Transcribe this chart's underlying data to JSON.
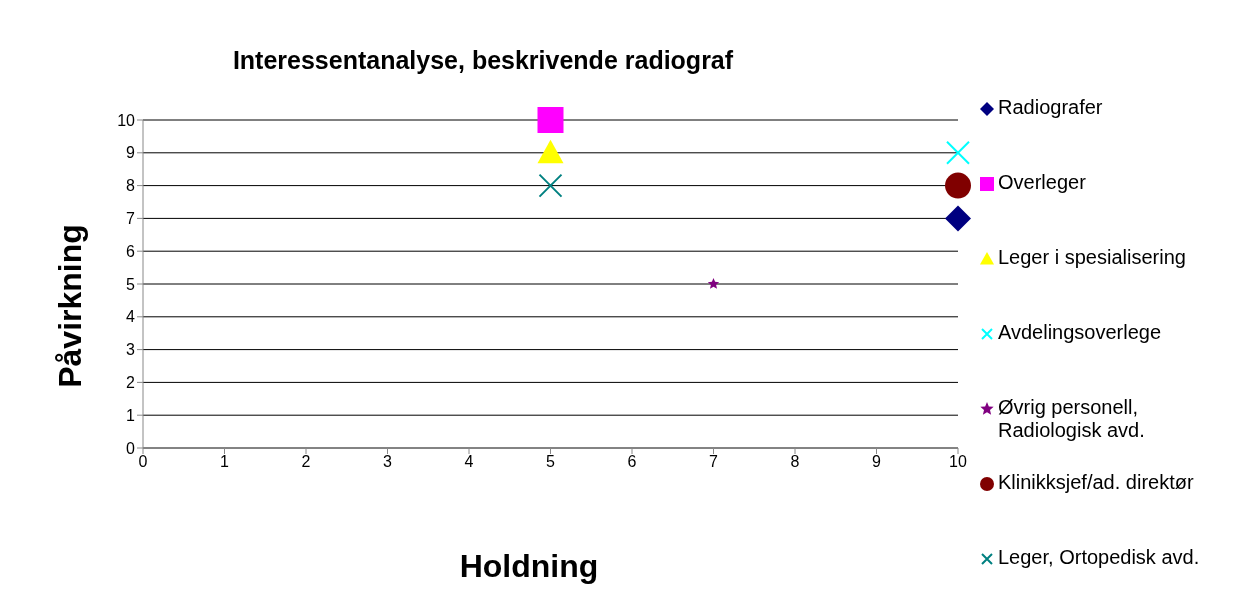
{
  "chart_data": {
    "type": "scatter",
    "title": "Interessentanalyse, beskrivende radiograf",
    "xlabel": "Holdning",
    "ylabel": "Påvirkning",
    "series": [
      {
        "name": "Radiografer",
        "color": "#000080",
        "x": [
          10
        ],
        "values": [
          7
        ],
        "marker": "diamond"
      },
      {
        "name": "Overleger",
        "color": "#ff00ff",
        "x": [
          5
        ],
        "values": [
          10
        ],
        "marker": "square"
      },
      {
        "name": "Leger i spesialisering",
        "color": "#ffff00",
        "x": [
          5
        ],
        "values": [
          9
        ],
        "marker": "triangle"
      },
      {
        "name": "Avdelingsoverlege",
        "color": "#00ffff",
        "x": [
          10
        ],
        "values": [
          9
        ],
        "marker": "cross"
      },
      {
        "name": "Øvrig personell, Radiologisk avd.",
        "color": "#800080",
        "x": [
          7
        ],
        "values": [
          5
        ],
        "marker": "star"
      },
      {
        "name": "Klinikksjef/ad. direktør",
        "color": "#800000",
        "x": [
          10
        ],
        "values": [
          8
        ],
        "marker": "circle"
      },
      {
        "name": "Leger, Ortopedisk avd.",
        "color": "#008080",
        "x": [
          5
        ],
        "values": [
          8
        ],
        "marker": "cross"
      }
    ],
    "xlim": [
      0,
      10
    ],
    "xticks": [
      0,
      1,
      2,
      3,
      4,
      5,
      6,
      7,
      8,
      9,
      10
    ],
    "ylim": [
      0,
      10
    ],
    "yticks": [
      0,
      1,
      2,
      3,
      4,
      5,
      6,
      7,
      8,
      9,
      10
    ],
    "grid": "y",
    "legend": "right"
  }
}
